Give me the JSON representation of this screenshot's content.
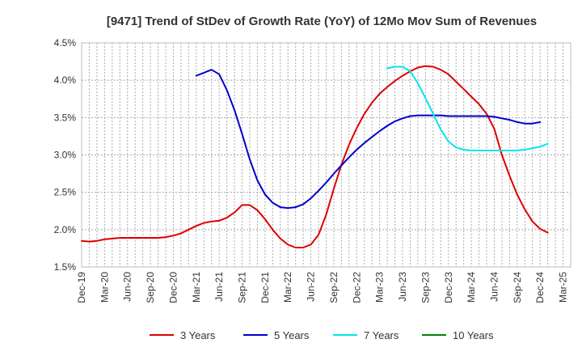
{
  "chart_data": {
    "type": "line",
    "title": "[9471]  Trend of StDev of Growth Rate (YoY) of 12Mo Mov Sum of Revenues",
    "xlabel": "",
    "ylabel": "",
    "y_ticks": [
      "1.5%",
      "2.0%",
      "2.5%",
      "3.0%",
      "3.5%",
      "4.0%",
      "4.5%"
    ],
    "ylim": [
      1.5,
      4.5
    ],
    "x_ticks": [
      "Dec-19",
      "Mar-20",
      "Jun-20",
      "Sep-20",
      "Dec-20",
      "Mar-21",
      "Jun-21",
      "Sep-21",
      "Dec-21",
      "Mar-22",
      "Jun-22",
      "Sep-22",
      "Dec-22",
      "Mar-23",
      "Jun-23",
      "Sep-23",
      "Dec-23",
      "Mar-24",
      "Jun-24",
      "Sep-24",
      "Dec-24",
      "Mar-25"
    ],
    "x_months": 64,
    "grid": true,
    "legend_position": "bottom",
    "series": [
      {
        "name": "3 Years",
        "color": "#dd0000",
        "start_month": 0,
        "values": [
          1.85,
          1.84,
          1.85,
          1.87,
          1.88,
          1.89,
          1.89,
          1.89,
          1.89,
          1.89,
          1.89,
          1.9,
          1.92,
          1.95,
          2.0,
          2.05,
          2.09,
          2.11,
          2.12,
          2.16,
          2.23,
          2.33,
          2.33,
          2.26,
          2.14,
          2.0,
          1.88,
          1.8,
          1.76,
          1.76,
          1.8,
          1.93,
          2.2,
          2.55,
          2.87,
          3.14,
          3.36,
          3.55,
          3.7,
          3.82,
          3.91,
          3.99,
          4.06,
          4.12,
          4.17,
          4.19,
          4.18,
          4.14,
          4.08,
          3.98,
          3.88,
          3.78,
          3.68,
          3.55,
          3.35,
          3.0,
          2.72,
          2.47,
          2.27,
          2.11,
          2.01,
          1.96
        ]
      },
      {
        "name": "5 Years",
        "color": "#0000cc",
        "start_month": 15,
        "values": [
          4.06,
          4.1,
          4.14,
          4.08,
          3.87,
          3.6,
          3.28,
          2.94,
          2.66,
          2.47,
          2.36,
          2.3,
          2.29,
          2.3,
          2.34,
          2.42,
          2.52,
          2.63,
          2.75,
          2.86,
          2.97,
          3.07,
          3.16,
          3.24,
          3.32,
          3.39,
          3.45,
          3.49,
          3.52,
          3.53,
          3.53,
          3.53,
          3.53,
          3.52,
          3.52,
          3.52,
          3.52,
          3.52,
          3.52,
          3.51,
          3.49,
          3.47,
          3.44,
          3.42,
          3.42,
          3.44
        ]
      },
      {
        "name": "7 Years",
        "color": "#00e5ee",
        "start_month": 40,
        "values": [
          4.16,
          4.18,
          4.18,
          4.12,
          3.96,
          3.76,
          3.55,
          3.34,
          3.18,
          3.1,
          3.07,
          3.06,
          3.06,
          3.06,
          3.06,
          3.06,
          3.06,
          3.06,
          3.07,
          3.09,
          3.11,
          3.15
        ]
      },
      {
        "name": "10 Years",
        "color": "#008000",
        "start_month": 0,
        "values": []
      }
    ]
  }
}
